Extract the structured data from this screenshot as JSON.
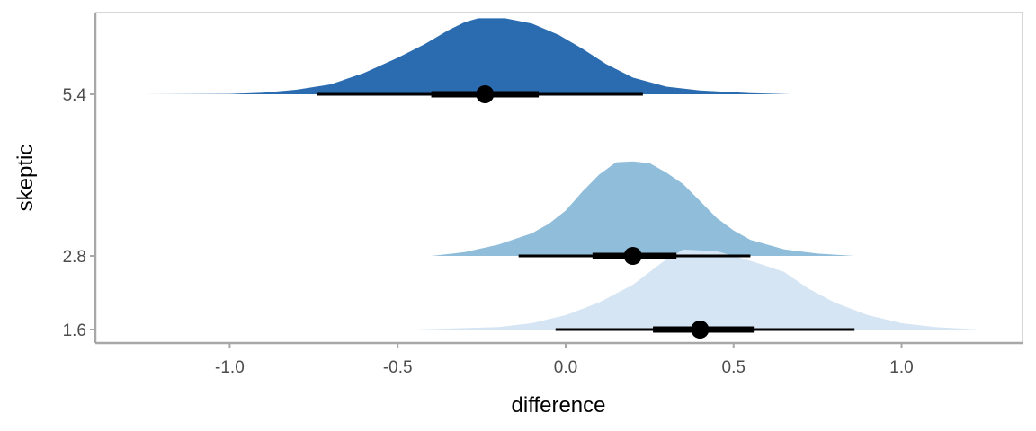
{
  "chart_data": {
    "type": "halfeye",
    "xlabel": "difference",
    "ylabel": "skeptic",
    "xlim": [
      -1.4,
      1.36
    ],
    "xticks": [
      -1.0,
      -0.5,
      0.0,
      0.5,
      1.0
    ],
    "xtick_labels": [
      "-1.0",
      "-0.5",
      "0.0",
      "0.5",
      "1.0"
    ],
    "grid": false,
    "series": [
      {
        "category": "5.4",
        "color": "#2b6cb0",
        "median": -0.24,
        "interval_66": [
          -0.4,
          -0.08
        ],
        "interval_95": [
          -0.74,
          0.23
        ],
        "density": [
          [
            -1.26,
            0.0
          ],
          [
            -1.0,
            0.005
          ],
          [
            -0.9,
            0.02
          ],
          [
            -0.8,
            0.06
          ],
          [
            -0.7,
            0.13
          ],
          [
            -0.6,
            0.28
          ],
          [
            -0.5,
            0.48
          ],
          [
            -0.42,
            0.66
          ],
          [
            -0.35,
            0.84
          ],
          [
            -0.3,
            0.95
          ],
          [
            -0.26,
            1.0
          ],
          [
            -0.18,
            1.0
          ],
          [
            -0.1,
            0.93
          ],
          [
            -0.02,
            0.78
          ],
          [
            0.05,
            0.6
          ],
          [
            0.12,
            0.4
          ],
          [
            0.2,
            0.22
          ],
          [
            0.3,
            0.1
          ],
          [
            0.4,
            0.05
          ],
          [
            0.55,
            0.015
          ],
          [
            0.67,
            0.0
          ]
        ],
        "scale": 0.94
      },
      {
        "category": "2.8",
        "color": "#8fbdda",
        "median": 0.2,
        "interval_66": [
          0.08,
          0.33
        ],
        "interval_95": [
          -0.14,
          0.55
        ],
        "density": [
          [
            -0.4,
            0.0
          ],
          [
            -0.3,
            0.04
          ],
          [
            -0.2,
            0.12
          ],
          [
            -0.1,
            0.24
          ],
          [
            -0.05,
            0.34
          ],
          [
            0.0,
            0.48
          ],
          [
            0.05,
            0.68
          ],
          [
            0.1,
            0.86
          ],
          [
            0.15,
            0.99
          ],
          [
            0.2,
            1.0
          ],
          [
            0.25,
            0.98
          ],
          [
            0.3,
            0.88
          ],
          [
            0.35,
            0.76
          ],
          [
            0.4,
            0.58
          ],
          [
            0.45,
            0.4
          ],
          [
            0.5,
            0.27
          ],
          [
            0.55,
            0.17
          ],
          [
            0.65,
            0.07
          ],
          [
            0.75,
            0.025
          ],
          [
            0.86,
            0.0
          ]
        ],
        "scale": 1.17
      },
      {
        "category": "1.6",
        "color": "#d6e5f4",
        "median": 0.4,
        "interval_66": [
          0.26,
          0.56
        ],
        "interval_95": [
          -0.03,
          0.86
        ],
        "density": [
          [
            -0.45,
            0.0
          ],
          [
            -0.2,
            0.03
          ],
          [
            -0.1,
            0.08
          ],
          [
            0.0,
            0.18
          ],
          [
            0.1,
            0.34
          ],
          [
            0.2,
            0.56
          ],
          [
            0.3,
            0.88
          ],
          [
            0.35,
            1.0
          ],
          [
            0.45,
            0.98
          ],
          [
            0.55,
            0.86
          ],
          [
            0.65,
            0.72
          ],
          [
            0.72,
            0.52
          ],
          [
            0.8,
            0.34
          ],
          [
            0.9,
            0.18
          ],
          [
            1.0,
            0.08
          ],
          [
            1.1,
            0.03
          ],
          [
            1.23,
            0.0
          ]
        ],
        "scale": 0.99
      }
    ]
  }
}
